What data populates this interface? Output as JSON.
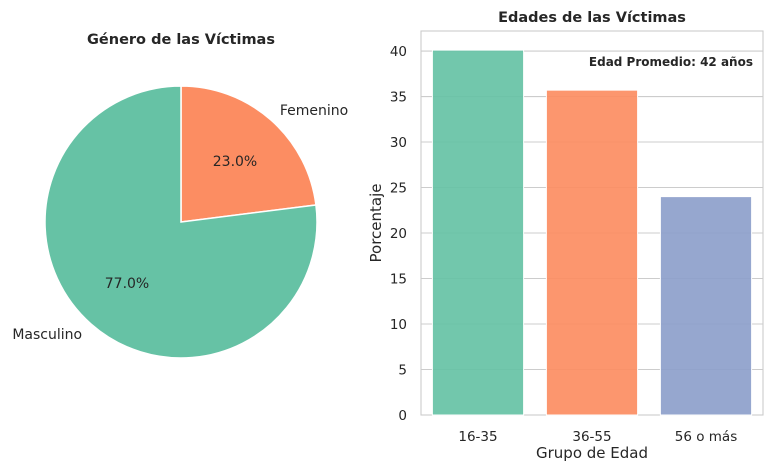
{
  "chart_data": [
    {
      "type": "pie",
      "title": "Género de las Víctimas",
      "labels": [
        "Femenino",
        "Masculino"
      ],
      "values": [
        23.0,
        77.0
      ],
      "value_labels": [
        "23.0%",
        "77.0%"
      ],
      "colors": [
        "#fc8d62",
        "#66c2a5"
      ],
      "start_angle_deg": 90,
      "direction": "clockwise"
    },
    {
      "type": "bar",
      "title": "Edades de las Víctimas",
      "categories": [
        "16-35",
        "36-55",
        "56 o más"
      ],
      "values": [
        40.1,
        35.7,
        24.0
      ],
      "colors": [
        "#66c2a5",
        "#fc8d62",
        "#8da0cb"
      ],
      "xlabel": "Grupo de Edad",
      "ylabel": "Porcentaje",
      "ylim": [
        0,
        42.2
      ],
      "yticks": [
        0,
        5,
        10,
        15,
        20,
        25,
        30,
        35,
        40
      ],
      "grid": "horizontal",
      "annotation": "Edad Promedio: 42 años",
      "annotation_position": "top-right"
    }
  ]
}
